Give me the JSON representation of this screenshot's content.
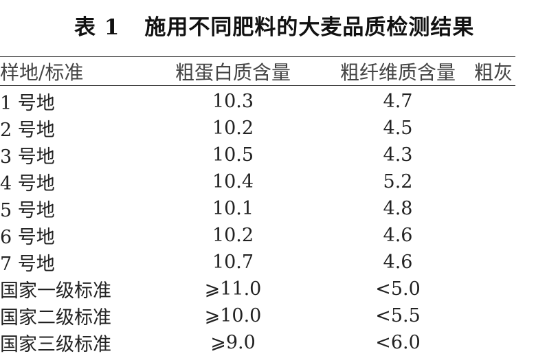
{
  "caption": {
    "label": "表 1",
    "title": "施用不同肥料的大麦品质检测结果"
  },
  "table": {
    "headers": [
      "样地/标准",
      "粗蛋白质含量",
      "粗纤维质含量",
      "粗灰"
    ],
    "rows": [
      [
        "1 号地",
        "10.3",
        "4.7",
        ""
      ],
      [
        "2 号地",
        "10.2",
        "4.5",
        ""
      ],
      [
        "3 号地",
        "10.5",
        "4.3",
        ""
      ],
      [
        "4 号地",
        "10.4",
        "5.2",
        ""
      ],
      [
        "5 号地",
        "10.1",
        "4.8",
        ""
      ],
      [
        "6 号地",
        "10.2",
        "4.6",
        ""
      ],
      [
        "7 号地",
        "10.7",
        "4.6",
        ""
      ],
      [
        "国家一级标准",
        "⩾11.0",
        "<5.0",
        ""
      ],
      [
        "国家二级标准",
        "⩾10.0",
        "<5.5",
        ""
      ],
      [
        "国家三级标准",
        "⩾9.0",
        "<6.0",
        ""
      ]
    ]
  }
}
